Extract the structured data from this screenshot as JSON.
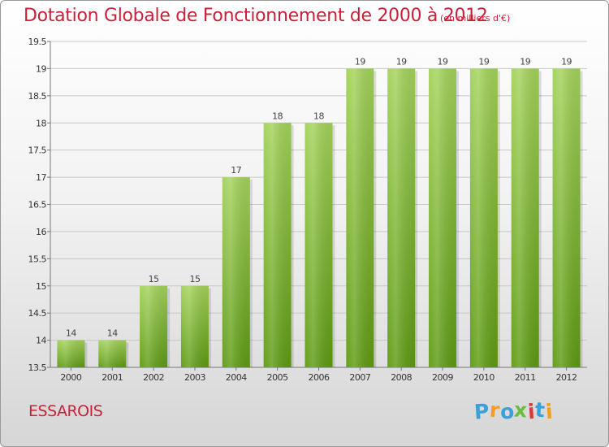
{
  "chart_data": {
    "type": "bar",
    "title": "Dotation Globale de Fonctionnement de 2000 à 2012",
    "unit_note": "(en milliers d'€)",
    "categories": [
      "2000",
      "2001",
      "2002",
      "2003",
      "2004",
      "2005",
      "2006",
      "2007",
      "2008",
      "2009",
      "2010",
      "2011",
      "2012"
    ],
    "values": [
      14,
      14,
      15,
      15,
      17,
      18,
      18,
      19,
      19,
      19,
      19,
      19,
      19
    ],
    "data_labels": [
      "14",
      "14",
      "15",
      "15",
      "17",
      "18",
      "18",
      "19",
      "19",
      "19",
      "19",
      "19",
      "19"
    ],
    "ylim": [
      13.5,
      19.5
    ],
    "yticks": [
      13.5,
      14,
      14.5,
      15,
      15.5,
      16,
      16.5,
      17,
      17.5,
      18,
      18.5,
      19,
      19.5
    ],
    "ytick_labels": [
      "13.5",
      "14",
      "14.5",
      "15",
      "15.5",
      "16",
      "16.5",
      "17",
      "17.5",
      "18",
      "18.5",
      "19",
      "19.5"
    ],
    "grid": true,
    "xlabel": "",
    "ylabel": ""
  },
  "commune": "ESSAROIS",
  "logo": {
    "text": "Proxiti",
    "letters": [
      {
        "ch": "P",
        "color": "#3aa0d8"
      },
      {
        "ch": "r",
        "color": "#f0a020"
      },
      {
        "ch": "o",
        "color": "#3aa0d8"
      },
      {
        "ch": "x",
        "color": "#6abf3a"
      },
      {
        "ch": "i",
        "color": "#d83a3a"
      },
      {
        "ch": "t",
        "color": "#3aa0d8"
      },
      {
        "ch": "i",
        "color": "#f0a020"
      }
    ]
  },
  "colors": {
    "title": "#c8213a",
    "bar_top": "#a3d35a",
    "bar_bottom": "#5e9a12",
    "grid": "#c8c8c8"
  }
}
